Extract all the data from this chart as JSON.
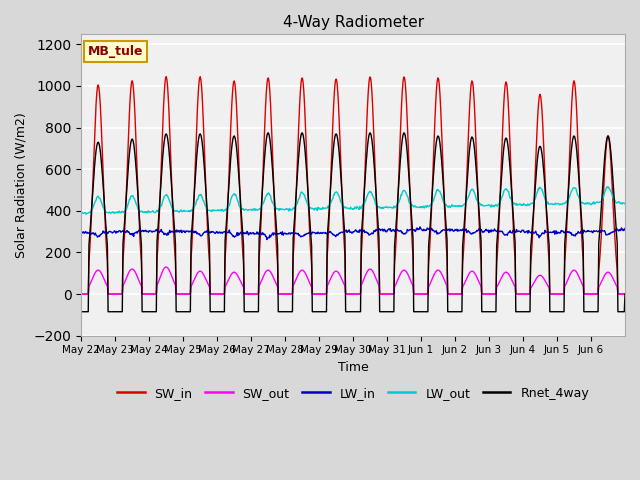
{
  "title": "4-Way Radiometer",
  "xlabel": "Time",
  "ylabel": "Solar Radiation (W/m2)",
  "ylim": [
    -200,
    1250
  ],
  "yticks": [
    -200,
    0,
    200,
    400,
    600,
    800,
    1000,
    1200
  ],
  "annotation_text": "MB_tule",
  "annotation_box_facecolor": "#ffffcc",
  "annotation_box_edgecolor": "#cc9900",
  "x_tick_labels": [
    "May 22",
    "May 23",
    "May 24",
    "May 25",
    "May 26",
    "May 27",
    "May 28",
    "May 29",
    "May 30",
    "May 31",
    "Jun 1",
    "Jun 2",
    "Jun 3",
    "Jun 4",
    "Jun 5",
    "Jun 6"
  ],
  "n_days": 16,
  "SW_in_peaks": [
    1005,
    1025,
    1045,
    1045,
    1025,
    1040,
    1040,
    1035,
    1045,
    1045,
    1040,
    1025,
    1020,
    960,
    1025,
    760
  ],
  "SW_out_peaks": [
    115,
    120,
    130,
    110,
    105,
    115,
    115,
    110,
    120,
    115,
    115,
    110,
    105,
    90,
    115,
    105
  ],
  "Rnet_peaks": [
    730,
    745,
    770,
    770,
    760,
    775,
    775,
    770,
    775,
    775,
    760,
    755,
    750,
    710,
    760,
    760
  ],
  "LW_in_base": 293,
  "LW_out_base": 388,
  "colors": {
    "SW_in": "#dd0000",
    "SW_out": "#ff00ff",
    "LW_in": "#0000cc",
    "LW_out": "#00cccc",
    "Rnet_4way": "#000000"
  },
  "fig_facecolor": "#d8d8d8",
  "ax_facecolor": "#f0f0f0",
  "grid_color": "#ffffff",
  "legend_labels": [
    "SW_in",
    "SW_out",
    "LW_in",
    "LW_out",
    "Rnet_4way"
  ]
}
